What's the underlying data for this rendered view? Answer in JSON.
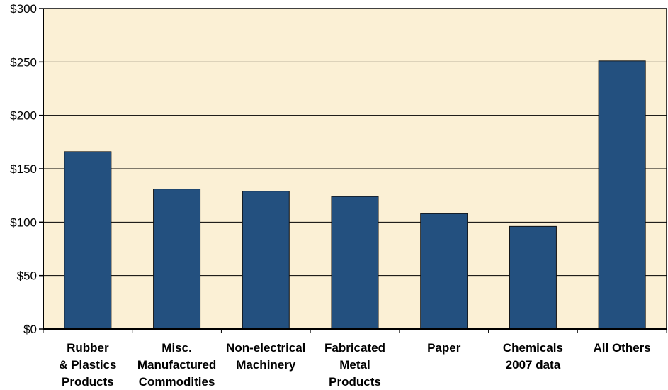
{
  "chart_data": {
    "type": "bar",
    "categories": [
      [
        "Rubber",
        "& Plastics",
        "Products"
      ],
      [
        "Misc.",
        "Manufactured",
        "Commodities"
      ],
      [
        "Non-electrical",
        "Machinery"
      ],
      [
        "Fabricated",
        "Metal",
        "Products"
      ],
      [
        "Paper"
      ],
      [
        "Chemicals",
        "2007 data"
      ],
      [
        "All Others"
      ]
    ],
    "values": [
      166,
      131,
      129,
      124,
      108,
      96,
      251
    ],
    "ylim": [
      0,
      300
    ],
    "yticks": [
      0,
      50,
      100,
      150,
      200,
      250,
      300
    ],
    "ytick_labels": [
      "$0",
      "$50",
      "$100",
      "$150",
      "$200",
      "$250",
      "$300"
    ],
    "grid": true,
    "title": "",
    "xlabel": "",
    "ylabel": "",
    "colors": {
      "bar": "#23507f",
      "bar_edge": "#111111",
      "plot_background": "#fbf0d5",
      "grid": "#000000",
      "axis": "#000000"
    }
  }
}
